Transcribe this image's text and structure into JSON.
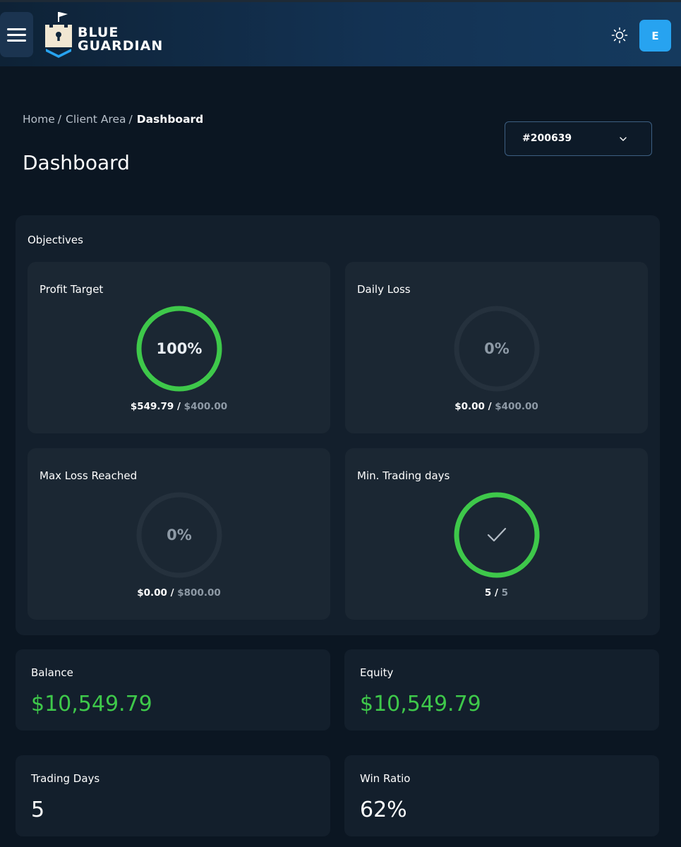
{
  "header": {
    "brand_line1": "BLUE",
    "brand_line2": "GUARDIAN",
    "user_initial": "E"
  },
  "breadcrumb": {
    "items": [
      "Home",
      "Client Area"
    ],
    "current": "Dashboard"
  },
  "page_title": "Dashboard",
  "account_select": {
    "value": "#200639"
  },
  "objectives": {
    "title": "Objectives",
    "cards": [
      {
        "label": "Profit Target",
        "ring_text": "100%",
        "progress": 1.0,
        "status": "complete",
        "current": "$549.79",
        "limit": "$400.00"
      },
      {
        "label": "Daily Loss",
        "ring_text": "0%",
        "progress": 0.0,
        "status": "empty",
        "current": "$0.00",
        "limit": "$400.00"
      },
      {
        "label": "Max Loss Reached",
        "ring_text": "0%",
        "progress": 0.0,
        "status": "empty",
        "current": "$0.00",
        "limit": "$800.00"
      },
      {
        "label": "Min. Trading days",
        "ring_text": "",
        "progress": 1.0,
        "status": "check",
        "current": "5",
        "limit": "5"
      }
    ]
  },
  "stats": {
    "balance": {
      "label": "Balance",
      "value": "$10,549.79"
    },
    "equity": {
      "label": "Equity",
      "value": "$10,549.79"
    },
    "trading_days": {
      "label": "Trading Days",
      "value": "5"
    },
    "win_ratio": {
      "label": "Win Ratio",
      "value": "62%"
    }
  },
  "colors": {
    "success": "#3ec84a",
    "accent": "#27a3f0",
    "ring_track": "#25313d"
  }
}
